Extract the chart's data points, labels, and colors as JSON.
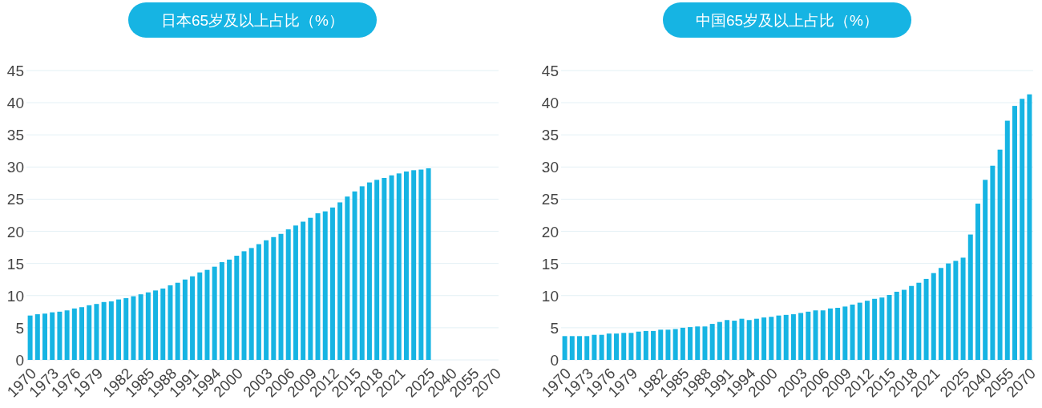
{
  "chart_data": [
    {
      "type": "bar",
      "title": "日本65岁及以上占比（%）",
      "categories": [
        "1970",
        null,
        null,
        "1973",
        null,
        null,
        "1976",
        null,
        null,
        "1979",
        null,
        null,
        null,
        "1982",
        null,
        null,
        "1985",
        null,
        null,
        "1988",
        null,
        null,
        "1991",
        null,
        null,
        "1994",
        null,
        null,
        "2000",
        null,
        null,
        null,
        "2003",
        null,
        null,
        "2006",
        null,
        null,
        "2009",
        null,
        null,
        "2012",
        null,
        null,
        "2015",
        null,
        null,
        "2018",
        null,
        null,
        "2021",
        null,
        null,
        null,
        "2025",
        null,
        null,
        "2040",
        null,
        null,
        "2055",
        null,
        null,
        "2070"
      ],
      "values": [
        6.9,
        7.1,
        7.2,
        7.4,
        7.5,
        7.7,
        8.0,
        8.2,
        8.5,
        8.7,
        9.0,
        9.1,
        9.4,
        9.6,
        9.9,
        10.2,
        10.5,
        10.8,
        11.1,
        11.6,
        12.0,
        12.5,
        13.0,
        13.6,
        14.0,
        14.5,
        15.2,
        15.6,
        16.2,
        16.9,
        17.4,
        18.0,
        18.6,
        19.1,
        19.6,
        20.3,
        20.9,
        21.5,
        22.1,
        22.8,
        23.1,
        23.7,
        24.5,
        25.4,
        26.2,
        27.0,
        27.6,
        28.0,
        28.3,
        28.7,
        29.0,
        29.3,
        29.5,
        29.6,
        29.8,
        null,
        null,
        null,
        null,
        null,
        null,
        null,
        null,
        null
      ],
      "color": "#16b4e3",
      "ylim": [
        0,
        45
      ],
      "yticks": [
        0,
        5,
        10,
        15,
        20,
        25,
        30,
        35,
        40,
        45
      ],
      "grid": "y"
    },
    {
      "type": "bar",
      "title": "中国65岁及以上占比（%）",
      "categories": [
        "1970",
        null,
        null,
        "1973",
        null,
        null,
        "1976",
        null,
        null,
        "1979",
        null,
        null,
        null,
        "1982",
        null,
        null,
        "1985",
        null,
        null,
        "1988",
        null,
        null,
        "1991",
        null,
        null,
        "1994",
        null,
        null,
        "2000",
        null,
        null,
        null,
        "2003",
        null,
        null,
        "2006",
        null,
        null,
        "2009",
        null,
        null,
        "2012",
        null,
        null,
        "2015",
        null,
        null,
        "2018",
        null,
        null,
        "2021",
        null,
        null,
        null,
        "2025",
        null,
        null,
        "2040",
        null,
        null,
        "2055",
        null,
        null,
        "2070"
      ],
      "values": [
        3.7,
        3.7,
        3.7,
        3.7,
        3.9,
        3.9,
        4.1,
        4.1,
        4.2,
        4.2,
        4.4,
        4.5,
        4.5,
        4.7,
        4.7,
        4.8,
        5.0,
        5.1,
        5.2,
        5.2,
        5.6,
        5.9,
        6.2,
        6.1,
        6.4,
        6.2,
        6.4,
        6.6,
        6.7,
        6.9,
        7.0,
        7.1,
        7.3,
        7.5,
        7.7,
        7.7,
        8.0,
        8.1,
        8.3,
        8.6,
        8.9,
        9.2,
        9.5,
        9.7,
        10.1,
        10.6,
        10.9,
        11.5,
        12.0,
        12.6,
        13.5,
        14.3,
        15.0,
        15.4,
        15.9,
        19.5,
        24.3,
        28.0,
        30.2,
        32.7,
        37.2,
        39.5,
        40.6,
        41.3
      ],
      "color": "#16b4e3",
      "ylim": [
        0,
        45
      ],
      "yticks": [
        0,
        5,
        10,
        15,
        20,
        25,
        30,
        35,
        40,
        45
      ],
      "grid": "y"
    }
  ]
}
